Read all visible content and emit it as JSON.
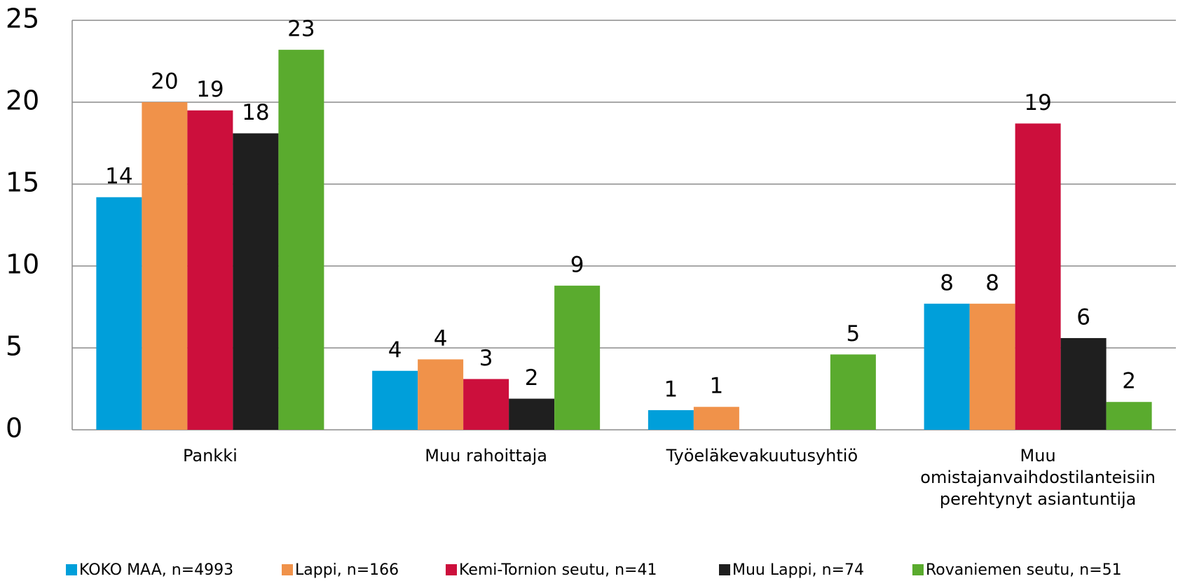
{
  "chart_data": {
    "type": "bar",
    "categories": [
      "Pankki",
      "Muu rahoittaja",
      "Työeläkevakuutusyhtiö",
      "Muu omistajanvaihdostilanteisiin perehtynyt asiantuntija"
    ],
    "series": [
      {
        "name": "KOKO MAA, n=4993",
        "color": "#009fda",
        "values": [
          14.2,
          3.6,
          1.2,
          7.7
        ],
        "value_labels": [
          "14",
          "4",
          "1",
          "8"
        ]
      },
      {
        "name": "Lappi, n=166",
        "color": "#f0924a",
        "values": [
          20.0,
          4.3,
          1.4,
          7.7
        ],
        "value_labels": [
          "20",
          "4",
          "1",
          "8"
        ]
      },
      {
        "name": "Kemi-Tornion seutu, n=41",
        "color": "#cc0f3c",
        "values": [
          19.5,
          3.1,
          null,
          18.7
        ],
        "value_labels": [
          "19",
          "3",
          null,
          "19"
        ]
      },
      {
        "name": "Muu Lappi, n=74",
        "color": "#1f1f1f",
        "values": [
          18.1,
          1.9,
          null,
          5.6
        ],
        "value_labels": [
          "18",
          "2",
          null,
          "6"
        ]
      },
      {
        "name": "Rovaniemen seutu, n=51",
        "color": "#5aab2e",
        "values": [
          23.2,
          8.8,
          4.6,
          1.7
        ],
        "value_labels": [
          "23",
          "9",
          "5",
          "2"
        ]
      }
    ],
    "ylim": [
      0,
      25
    ],
    "yticks": [
      0,
      5,
      10,
      15,
      20,
      25
    ],
    "grid": true,
    "legend": "bottom"
  }
}
